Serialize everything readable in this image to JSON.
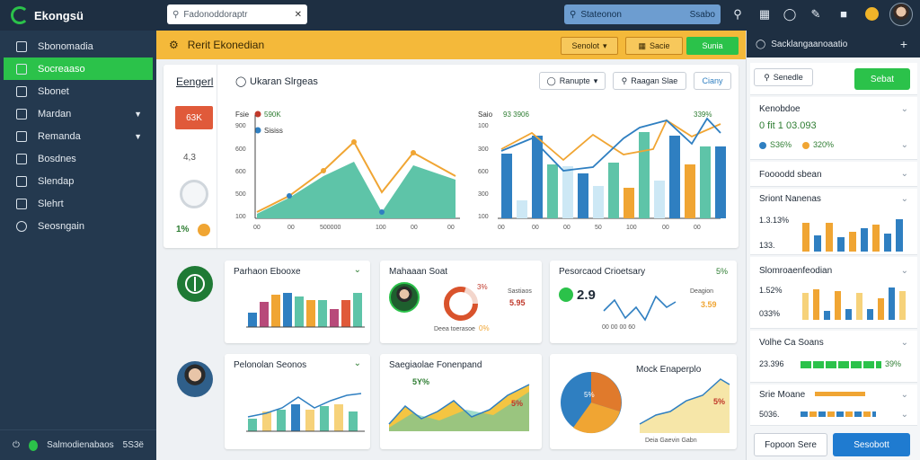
{
  "app": {
    "name": "Ekongsü"
  },
  "topbar": {
    "search_placeholder": "Fadonoddoraptr",
    "right_search_label": "Stateonon",
    "right_search_tail": "Ssabo"
  },
  "sidebar": {
    "items": [
      {
        "label": "Sbonomadia",
        "icon": "grid-icon"
      },
      {
        "label": "Socreaaso",
        "icon": "chart-icon"
      },
      {
        "label": "Sbonet",
        "icon": "bar-icon"
      },
      {
        "label": "Mardan",
        "icon": "layout-icon"
      },
      {
        "label": "Remanda",
        "icon": "home-icon"
      },
      {
        "label": "Bosdnes",
        "icon": "document-icon"
      },
      {
        "label": "Slendap",
        "icon": "edit-icon"
      },
      {
        "label": "Slehrt",
        "icon": "file-icon"
      },
      {
        "label": "Seosngain",
        "icon": "globe-icon"
      }
    ],
    "footer_label": "Salmodienabaos",
    "footer_tail": "5S3ë"
  },
  "header": {
    "title": "Rerit Ekonedian",
    "btn1": "Senolot",
    "btn2": "Sacie",
    "btn3": "Sunia"
  },
  "main_card": {
    "left_label": "Eengerl",
    "title": "Ukaran Slrgeas",
    "pill1": "Ranupte",
    "pill2": "Raagan Slae",
    "pill3": "Ciany",
    "red_badge": "63K",
    "stat1": "4,3",
    "stat_bottom": "1%",
    "legend_left_a": "Fsie",
    "legend_left_b": "590K",
    "legend_left_c": "Sisiss",
    "legend_right_a": "Saio",
    "legend_right_b": "93 3906",
    "legend_right_c": "339%"
  },
  "small_cards": [
    {
      "title": "Parhaon Ebooxe"
    },
    {
      "title": "Mahaaan Soat",
      "val1": "3%",
      "val2": "5.95",
      "val3": "0%"
    },
    {
      "title": "Pesorcaod Crioetsary",
      "val1": "2.9",
      "val2": "3.59",
      "badge": "5%"
    },
    {
      "title": "Pelonolan Seonos"
    },
    {
      "title": "Saegiaolae Fonenpand",
      "val1": "5Y%",
      "val2": "5%"
    },
    {
      "title": "Mock Enaperplo",
      "val1": "5%",
      "val2": "5%"
    }
  ],
  "right_panel": {
    "header": "Sacklangaanoaatio",
    "filter": "Senedle",
    "filter_btn": "Sebat",
    "s1_label": "Kenobdoe",
    "s1_val": "0 fit 1 03.093",
    "s1_legend_a": "S36%",
    "s1_legend_b": "320%",
    "s2_label": "Foooodd sbean",
    "s3_label": "Sriont Nanenas",
    "s3_val1": "1.3.13%",
    "s3_val2": "133.",
    "s4_label": "Slomroaenfeodian",
    "s4_val1": "1.52%",
    "s4_val2": "033%",
    "s5_label": "Volhe Ca Soans",
    "s5_val1": "23.396",
    "s5_val2": "39%",
    "s6_label": "Srie Moane",
    "s6_val": "5036.",
    "btn_secondary": "Fopoon Sere",
    "btn_primary": "Sesobott"
  },
  "colors": {
    "teal": "#5ec4a8",
    "orange": "#f0a533",
    "blue": "#2f7fc1",
    "green": "#2bc24a",
    "navy": "#1e2f42",
    "red": "#e05a3a"
  }
}
